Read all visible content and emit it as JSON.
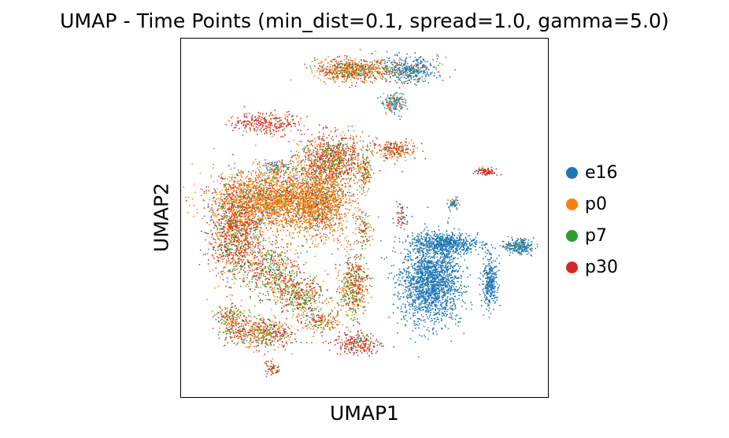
{
  "chart_data": {
    "type": "scatter",
    "title": "UMAP - Time Points (min_dist=0.1, spread=1.0, gamma=5.0)",
    "xlabel": "UMAP1",
    "ylabel": "UMAP2",
    "xlim": [
      0,
      100
    ],
    "ylim": [
      0,
      100
    ],
    "ticks": "none",
    "grid": false,
    "legend_placement": "right",
    "series": [
      {
        "name": "e16",
        "color": "#1f77b4"
      },
      {
        "name": "p0",
        "color": "#ff7f0e"
      },
      {
        "name": "p7",
        "color": "#2ca02c"
      },
      {
        "name": "p30",
        "color": "#d62728"
      }
    ],
    "clusters": [
      {
        "x": 68,
        "y": 32,
        "sx": 4.0,
        "sy": 5.5,
        "n": 1800,
        "mix": [
          1,
          0,
          0,
          0
        ]
      },
      {
        "x": 72,
        "y": 43,
        "sx": 4.5,
        "sy": 1.4,
        "n": 600,
        "mix": [
          1,
          0,
          0,
          0
        ]
      },
      {
        "x": 84,
        "y": 32,
        "sx": 1.0,
        "sy": 3.5,
        "n": 320,
        "mix": [
          1,
          0,
          0,
          0
        ]
      },
      {
        "x": 92,
        "y": 42,
        "sx": 2.0,
        "sy": 1.0,
        "n": 220,
        "mix": [
          0.8,
          0,
          0.15,
          0.05
        ]
      },
      {
        "x": 62,
        "y": 91,
        "sx": 4.0,
        "sy": 1.8,
        "n": 420,
        "mix": [
          0.75,
          0.15,
          0.05,
          0.05
        ]
      },
      {
        "x": 47,
        "y": 91,
        "sx": 5.0,
        "sy": 1.6,
        "n": 650,
        "mix": [
          0.05,
          0.45,
          0.2,
          0.3
        ]
      },
      {
        "x": 58,
        "y": 82,
        "sx": 1.5,
        "sy": 1.5,
        "n": 170,
        "mix": [
          0.55,
          0.3,
          0.1,
          0.05
        ]
      },
      {
        "x": 41,
        "y": 66,
        "sx": 4.5,
        "sy": 3.5,
        "n": 950,
        "mix": [
          0.02,
          0.35,
          0.2,
          0.43
        ]
      },
      {
        "x": 23,
        "y": 76,
        "sx": 4.5,
        "sy": 1.6,
        "n": 280,
        "mix": [
          0.02,
          0.15,
          0.08,
          0.75
        ]
      },
      {
        "x": 58,
        "y": 69,
        "sx": 3.0,
        "sy": 1.2,
        "n": 230,
        "mix": [
          0.05,
          0.4,
          0.15,
          0.4
        ]
      },
      {
        "x": 25,
        "y": 55,
        "sx": 8.0,
        "sy": 4.0,
        "n": 2300,
        "mix": [
          0.05,
          0.72,
          0.1,
          0.13
        ]
      },
      {
        "x": 38,
        "y": 54,
        "sx": 4.0,
        "sy": 5.0,
        "n": 1100,
        "mix": [
          0.03,
          0.7,
          0.14,
          0.13
        ]
      },
      {
        "x": 15,
        "y": 45,
        "sx": 3.5,
        "sy": 6.0,
        "n": 1000,
        "mix": [
          0.03,
          0.3,
          0.22,
          0.45
        ]
      },
      {
        "x": 25,
        "y": 35,
        "sx": 4.0,
        "sy": 4.0,
        "n": 500,
        "mix": [
          0.02,
          0.3,
          0.35,
          0.33
        ]
      },
      {
        "x": 33,
        "y": 28,
        "sx": 3.0,
        "sy": 3.0,
        "n": 380,
        "mix": [
          0.02,
          0.35,
          0.35,
          0.28
        ]
      },
      {
        "x": 47,
        "y": 31,
        "sx": 2.0,
        "sy": 4.5,
        "n": 450,
        "mix": [
          0.02,
          0.45,
          0.3,
          0.23
        ]
      },
      {
        "x": 22,
        "y": 18,
        "sx": 4.5,
        "sy": 2.0,
        "n": 480,
        "mix": [
          0.02,
          0.35,
          0.3,
          0.33
        ]
      },
      {
        "x": 14,
        "y": 22,
        "sx": 2.0,
        "sy": 2.5,
        "n": 200,
        "mix": [
          0.02,
          0.35,
          0.3,
          0.33
        ]
      },
      {
        "x": 38,
        "y": 21,
        "sx": 2.5,
        "sy": 1.5,
        "n": 150,
        "mix": [
          0.02,
          0.45,
          0.23,
          0.3
        ]
      },
      {
        "x": 48,
        "y": 15,
        "sx": 3.0,
        "sy": 1.5,
        "n": 230,
        "mix": [
          0.02,
          0.1,
          0.18,
          0.7
        ]
      },
      {
        "x": 25,
        "y": 8,
        "sx": 1.0,
        "sy": 1.2,
        "n": 60,
        "mix": [
          0.05,
          0.2,
          0.15,
          0.6
        ]
      },
      {
        "x": 50,
        "y": 47,
        "sx": 1.0,
        "sy": 2.5,
        "n": 90,
        "mix": [
          0.02,
          0.45,
          0.25,
          0.28
        ]
      },
      {
        "x": 26,
        "y": 64,
        "sx": 2.0,
        "sy": 1.0,
        "n": 90,
        "mix": [
          0.4,
          0.35,
          0.1,
          0.15
        ]
      },
      {
        "x": 50,
        "y": 63,
        "sx": 1.0,
        "sy": 2.5,
        "n": 120,
        "mix": [
          0.02,
          0.4,
          0.3,
          0.28
        ]
      },
      {
        "x": 83,
        "y": 63,
        "sx": 1.5,
        "sy": 0.5,
        "n": 90,
        "mix": [
          0.05,
          0.05,
          0.05,
          0.85
        ]
      },
      {
        "x": 60,
        "y": 50,
        "sx": 0.8,
        "sy": 1.5,
        "n": 60,
        "mix": [
          0.15,
          0.1,
          0.05,
          0.7
        ]
      },
      {
        "x": 74,
        "y": 54,
        "sx": 0.8,
        "sy": 1.0,
        "n": 50,
        "mix": [
          0.7,
          0.1,
          0.1,
          0.1
        ]
      }
    ]
  }
}
